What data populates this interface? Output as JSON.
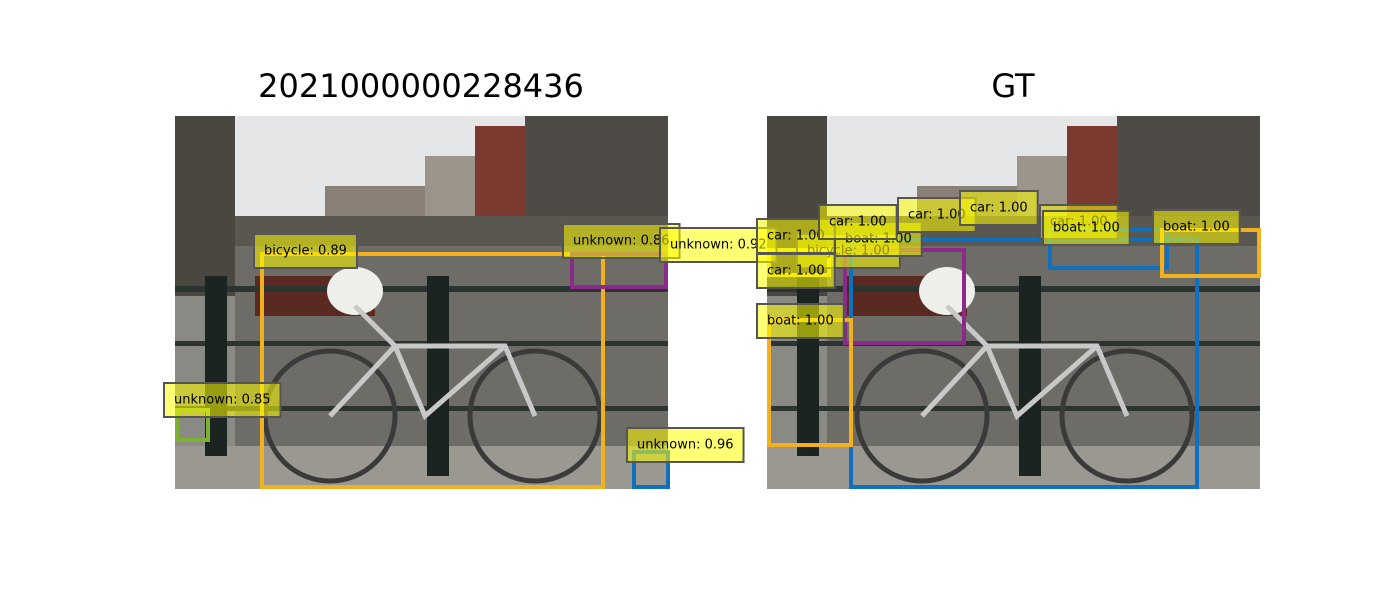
{
  "panels": [
    {
      "title": "2021000000228436",
      "detections": [
        {
          "label": "bicycle: 0.89"
        },
        {
          "label": "unknown: 0.86"
        },
        {
          "label": "unknown: 0.92"
        },
        {
          "label": "unknown: 0.85"
        },
        {
          "label": "unknown: 0.96"
        }
      ]
    },
    {
      "title": "GT",
      "detections": [
        {
          "label": "bicycle: 1.00"
        },
        {
          "label": "boat: 1.00"
        },
        {
          "label": "car: 1.00"
        },
        {
          "label": "car: 1.00"
        },
        {
          "label": "boat: 1.00"
        },
        {
          "label": "car: 1.00"
        },
        {
          "label": "car: 1.00"
        },
        {
          "label": "car: 1.00"
        },
        {
          "label": "car: 1.00"
        },
        {
          "label": "boat: 1.00"
        },
        {
          "label": "boat: 1.00"
        }
      ]
    }
  ]
}
